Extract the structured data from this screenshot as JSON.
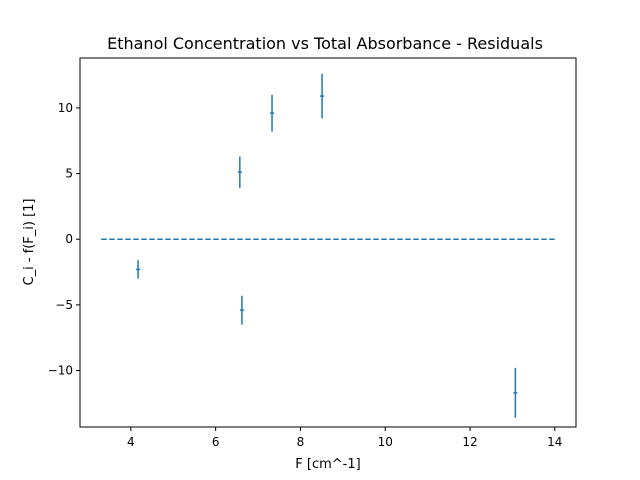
{
  "chart_data": {
    "type": "scatter",
    "title": "Ethanol Concentration vs Total Absorbance - Residuals",
    "xlabel": "F [cm^-1]",
    "ylabel": "C_i - f(F_i) [1]",
    "xlim": [
      2.8,
      14.5
    ],
    "ylim": [
      -14.3,
      13.8
    ],
    "xticks": [
      4,
      6,
      8,
      10,
      12,
      14
    ],
    "yticks": [
      -10,
      -5,
      0,
      5,
      10
    ],
    "xtick_labels": [
      "4",
      "6",
      "8",
      "10",
      "12",
      "14"
    ],
    "ytick_labels": [
      "−10",
      "−5",
      "0",
      "5",
      "10"
    ],
    "grid": false,
    "color": "#1f77b4",
    "zero_line": {
      "x": [
        3.3,
        14.0
      ],
      "y": 0,
      "style": "dashed"
    },
    "series": [
      {
        "x": [
          4.17,
          6.57,
          6.62,
          7.33,
          8.51,
          13.07
        ],
        "y": [
          -2.3,
          5.1,
          -5.4,
          9.6,
          10.9,
          -11.7
        ],
        "yerr": [
          0.7,
          1.2,
          1.1,
          1.4,
          1.7,
          1.9
        ]
      }
    ]
  }
}
